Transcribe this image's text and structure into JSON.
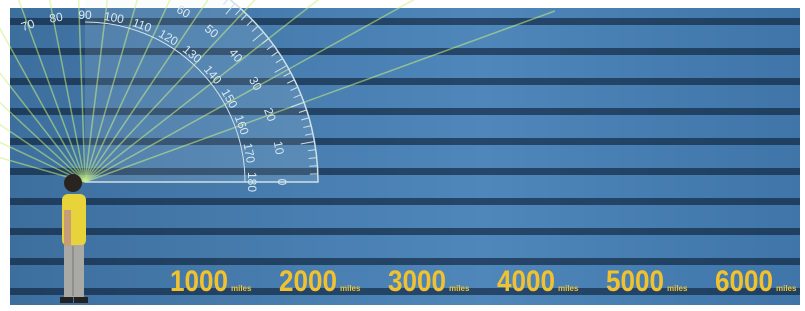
{
  "protractor": {
    "outer_scale": [
      70,
      80,
      90,
      100,
      110,
      120,
      130,
      140,
      150,
      160,
      170,
      180
    ],
    "inner_scale": [
      60,
      50,
      40,
      30,
      20,
      10,
      0
    ]
  },
  "distances": [
    {
      "value": "1000",
      "unit": "miles"
    },
    {
      "value": "2000",
      "unit": "miles"
    },
    {
      "value": "3000",
      "unit": "miles"
    },
    {
      "value": "4000",
      "unit": "miles"
    },
    {
      "value": "5000",
      "unit": "miles"
    },
    {
      "value": "6000",
      "unit": "miles"
    }
  ]
}
